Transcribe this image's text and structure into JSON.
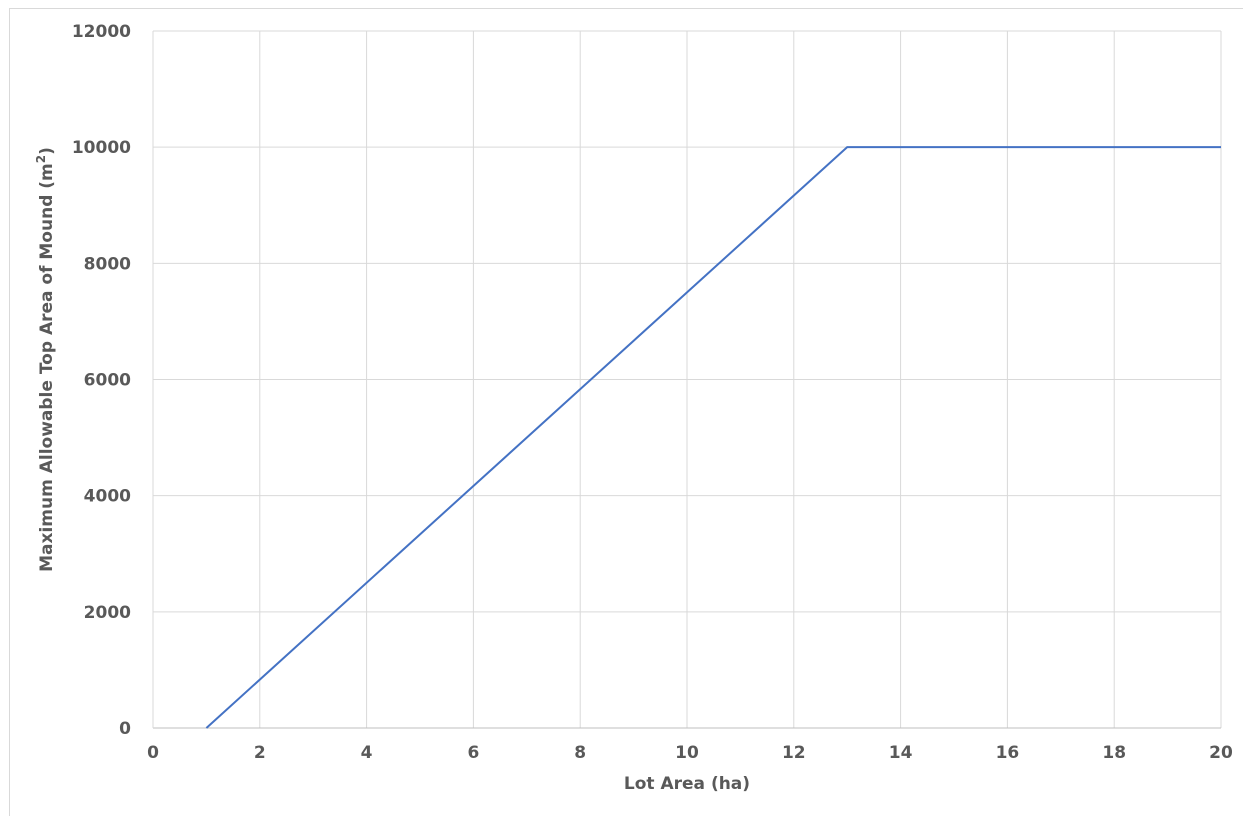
{
  "chart_data": {
    "type": "line",
    "title": "",
    "xlabel": "Lot Area (ha)",
    "ylabel_main": "Maximum Allowable Top Area of Mound (m",
    "ylabel_sup": "2",
    "ylabel_end": ")",
    "xlim": [
      0,
      20
    ],
    "ylim": [
      0,
      12000
    ],
    "x_ticks": [
      0,
      2,
      4,
      6,
      8,
      10,
      12,
      14,
      16,
      18,
      20
    ],
    "y_ticks": [
      0,
      2000,
      4000,
      6000,
      8000,
      10000,
      12000
    ],
    "grid": true,
    "legend": "none",
    "series": [
      {
        "color": "#4472c4",
        "x": [
          1,
          13,
          20
        ],
        "y": [
          0,
          10000,
          10000
        ]
      }
    ]
  }
}
